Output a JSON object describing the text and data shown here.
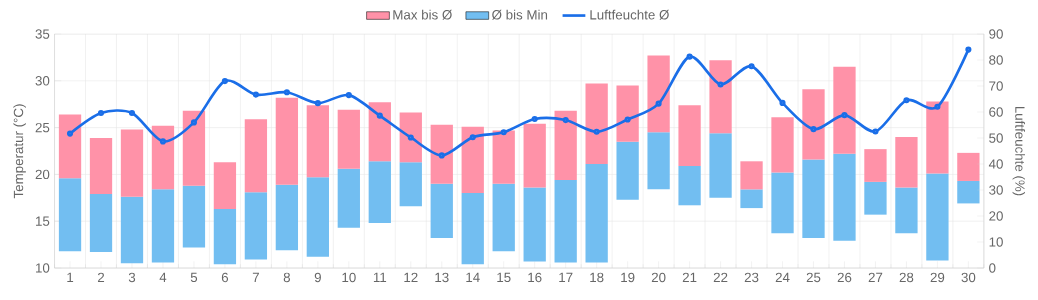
{
  "chart_data": {
    "type": "bar",
    "categories": [
      "1",
      "2",
      "3",
      "4",
      "5",
      "6",
      "7",
      "8",
      "9",
      "10",
      "11",
      "12",
      "13",
      "14",
      "15",
      "16",
      "17",
      "18",
      "19",
      "20",
      "21",
      "22",
      "23",
      "24",
      "25",
      "26",
      "27",
      "28",
      "29",
      "30"
    ],
    "ylabel": "Temperatur (°C)",
    "y2label": "Luftfeuchte (%)",
    "ylim": [
      10,
      35
    ],
    "yticks": [
      10,
      15,
      20,
      25,
      30,
      35
    ],
    "y2lim": [
      0,
      90
    ],
    "y2ticks": [
      0,
      10,
      20,
      30,
      40,
      50,
      60,
      70,
      80,
      90
    ],
    "grid": true,
    "legend": "top",
    "series": [
      {
        "name": "Ø bis Min",
        "color": "#72bef1",
        "base": [
          11.8,
          11.7,
          10.5,
          10.6,
          12.2,
          10.4,
          10.9,
          11.9,
          11.2,
          14.3,
          14.8,
          16.6,
          13.2,
          10.4,
          11.8,
          10.7,
          10.6,
          10.6,
          17.3,
          18.4,
          16.7,
          17.5,
          16.4,
          13.7,
          13.2,
          12.9,
          15.7,
          13.7,
          10.8,
          16.9
        ],
        "values": [
          7.8,
          6.2,
          7.1,
          7.8,
          6.6,
          5.9,
          7.2,
          7.0,
          8.5,
          6.3,
          6.6,
          4.7,
          5.8,
          7.6,
          7.2,
          7.9,
          8.8,
          10.5,
          6.2,
          6.1,
          4.2,
          6.9,
          2.0,
          6.5,
          8.4,
          9.3,
          3.5,
          4.9,
          9.3,
          2.4
        ]
      },
      {
        "name": "Max bis Ø",
        "color": "#ff92a8",
        "base": [
          19.6,
          17.9,
          17.6,
          18.4,
          18.8,
          16.3,
          18.1,
          18.9,
          19.7,
          20.6,
          21.4,
          21.3,
          19.0,
          18.0,
          19.0,
          18.6,
          19.4,
          21.1,
          23.5,
          24.5,
          20.9,
          24.4,
          18.4,
          20.2,
          21.6,
          22.2,
          19.2,
          18.6,
          20.1,
          19.3
        ],
        "values": [
          6.8,
          6.0,
          7.2,
          6.8,
          8.0,
          5.0,
          7.8,
          9.3,
          7.7,
          6.3,
          6.3,
          5.3,
          6.3,
          7.1,
          5.7,
          6.8,
          7.4,
          8.6,
          6.0,
          8.2,
          6.5,
          7.8,
          3.0,
          5.9,
          7.5,
          9.3,
          3.5,
          5.4,
          7.7,
          3.0
        ]
      },
      {
        "name": "Luftfeuchte Ø",
        "type": "line",
        "axis": "y2",
        "color": "#1a6ee8",
        "marker": "circle",
        "values": [
          51.7,
          59.6,
          59.6,
          48.7,
          56.0,
          71.9,
          66.7,
          67.6,
          63.4,
          66.5,
          58.6,
          50.2,
          43.3,
          50.3,
          52.2,
          57.3,
          56.9,
          52.4,
          57.1,
          63.2,
          81.3,
          70.6,
          77.6,
          63.5,
          53.4,
          58.8,
          52.5,
          64.5,
          62.0,
          84.0
        ]
      }
    ]
  }
}
